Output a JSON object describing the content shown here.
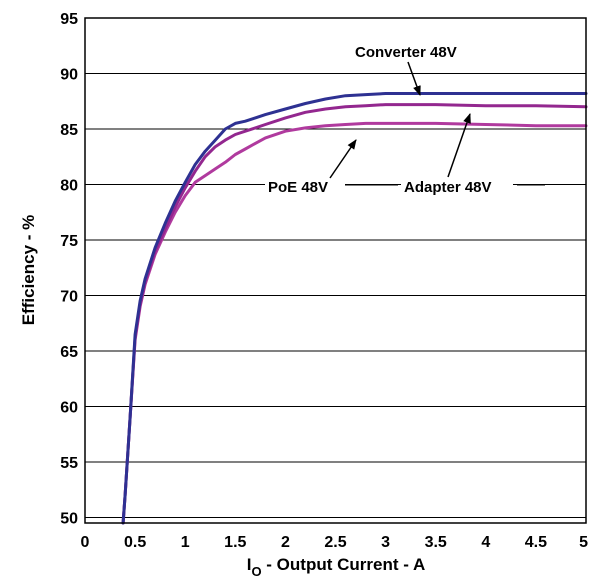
{
  "chart_data": {
    "type": "line",
    "title": "",
    "xlabel_main": "I",
    "xlabel_sub": "O",
    "xlabel_rest": " - Output Current - A",
    "ylabel": "Efficiency - %",
    "xlim": [
      0,
      5
    ],
    "ylim": [
      49.5,
      95
    ],
    "grid": "horizontal",
    "x_ticks": [
      "0",
      "0.5",
      "1",
      "1.5",
      "2",
      "2.5",
      "3",
      "3.5",
      "4",
      "4.5",
      "5"
    ],
    "y_ticks": [
      "50",
      "55",
      "60",
      "65",
      "70",
      "75",
      "80",
      "85",
      "90",
      "95"
    ],
    "series": [
      {
        "name": "Converter 48V",
        "color": "#2e3192",
        "x": [
          0.38,
          0.4,
          0.45,
          0.5,
          0.55,
          0.6,
          0.7,
          0.8,
          0.9,
          1.0,
          1.1,
          1.2,
          1.3,
          1.4,
          1.5,
          1.6,
          1.7,
          1.8,
          2.0,
          2.2,
          2.4,
          2.6,
          2.8,
          3.0,
          3.2,
          3.5,
          4.0,
          4.5,
          5.0
        ],
        "y": [
          49.5,
          52,
          59,
          66.5,
          69.5,
          71.5,
          74.3,
          76.5,
          78.5,
          80.2,
          81.8,
          83,
          84,
          85,
          85.5,
          85.7,
          86,
          86.3,
          86.8,
          87.3,
          87.7,
          88,
          88.1,
          88.2,
          88.2,
          88.2,
          88.2,
          88.2,
          88.2
        ]
      },
      {
        "name": "Adapter 48V",
        "color": "#93278f",
        "x": [
          0.38,
          0.4,
          0.45,
          0.5,
          0.55,
          0.6,
          0.7,
          0.8,
          0.9,
          1.0,
          1.1,
          1.2,
          1.3,
          1.4,
          1.5,
          1.6,
          1.7,
          1.8,
          2.0,
          2.2,
          2.4,
          2.6,
          2.8,
          3.0,
          3.2,
          3.5,
          4.0,
          4.5,
          5.0
        ],
        "y": [
          49.5,
          52,
          59,
          66.2,
          69.2,
          71.2,
          74,
          76,
          78,
          79.7,
          81.2,
          82.5,
          83.4,
          84,
          84.5,
          84.8,
          85.1,
          85.4,
          86,
          86.5,
          86.8,
          87,
          87.1,
          87.2,
          87.2,
          87.2,
          87.1,
          87.1,
          87.0
        ]
      },
      {
        "name": "PoE 48V",
        "color": "#b03a9e",
        "x": [
          0.38,
          0.4,
          0.45,
          0.5,
          0.55,
          0.6,
          0.7,
          0.8,
          0.9,
          1.0,
          1.1,
          1.2,
          1.3,
          1.4,
          1.5,
          1.6,
          1.7,
          1.8,
          2.0,
          2.2,
          2.4,
          2.6,
          2.8,
          3.0,
          3.2,
          3.5,
          4.0,
          4.5,
          5.0
        ],
        "y": [
          49.5,
          52,
          59,
          66,
          69,
          71,
          73.7,
          75.7,
          77.5,
          79,
          80.2,
          80.8,
          81.4,
          82,
          82.7,
          83.2,
          83.7,
          84.2,
          84.8,
          85.1,
          85.3,
          85.4,
          85.5,
          85.5,
          85.5,
          85.5,
          85.4,
          85.3,
          85.3
        ]
      }
    ],
    "annotations": [
      {
        "text": "Converter 48V",
        "series": 0
      },
      {
        "text": "PoE 48V",
        "series": 2
      },
      {
        "text": "Adapter 48V",
        "series": 1
      }
    ]
  }
}
